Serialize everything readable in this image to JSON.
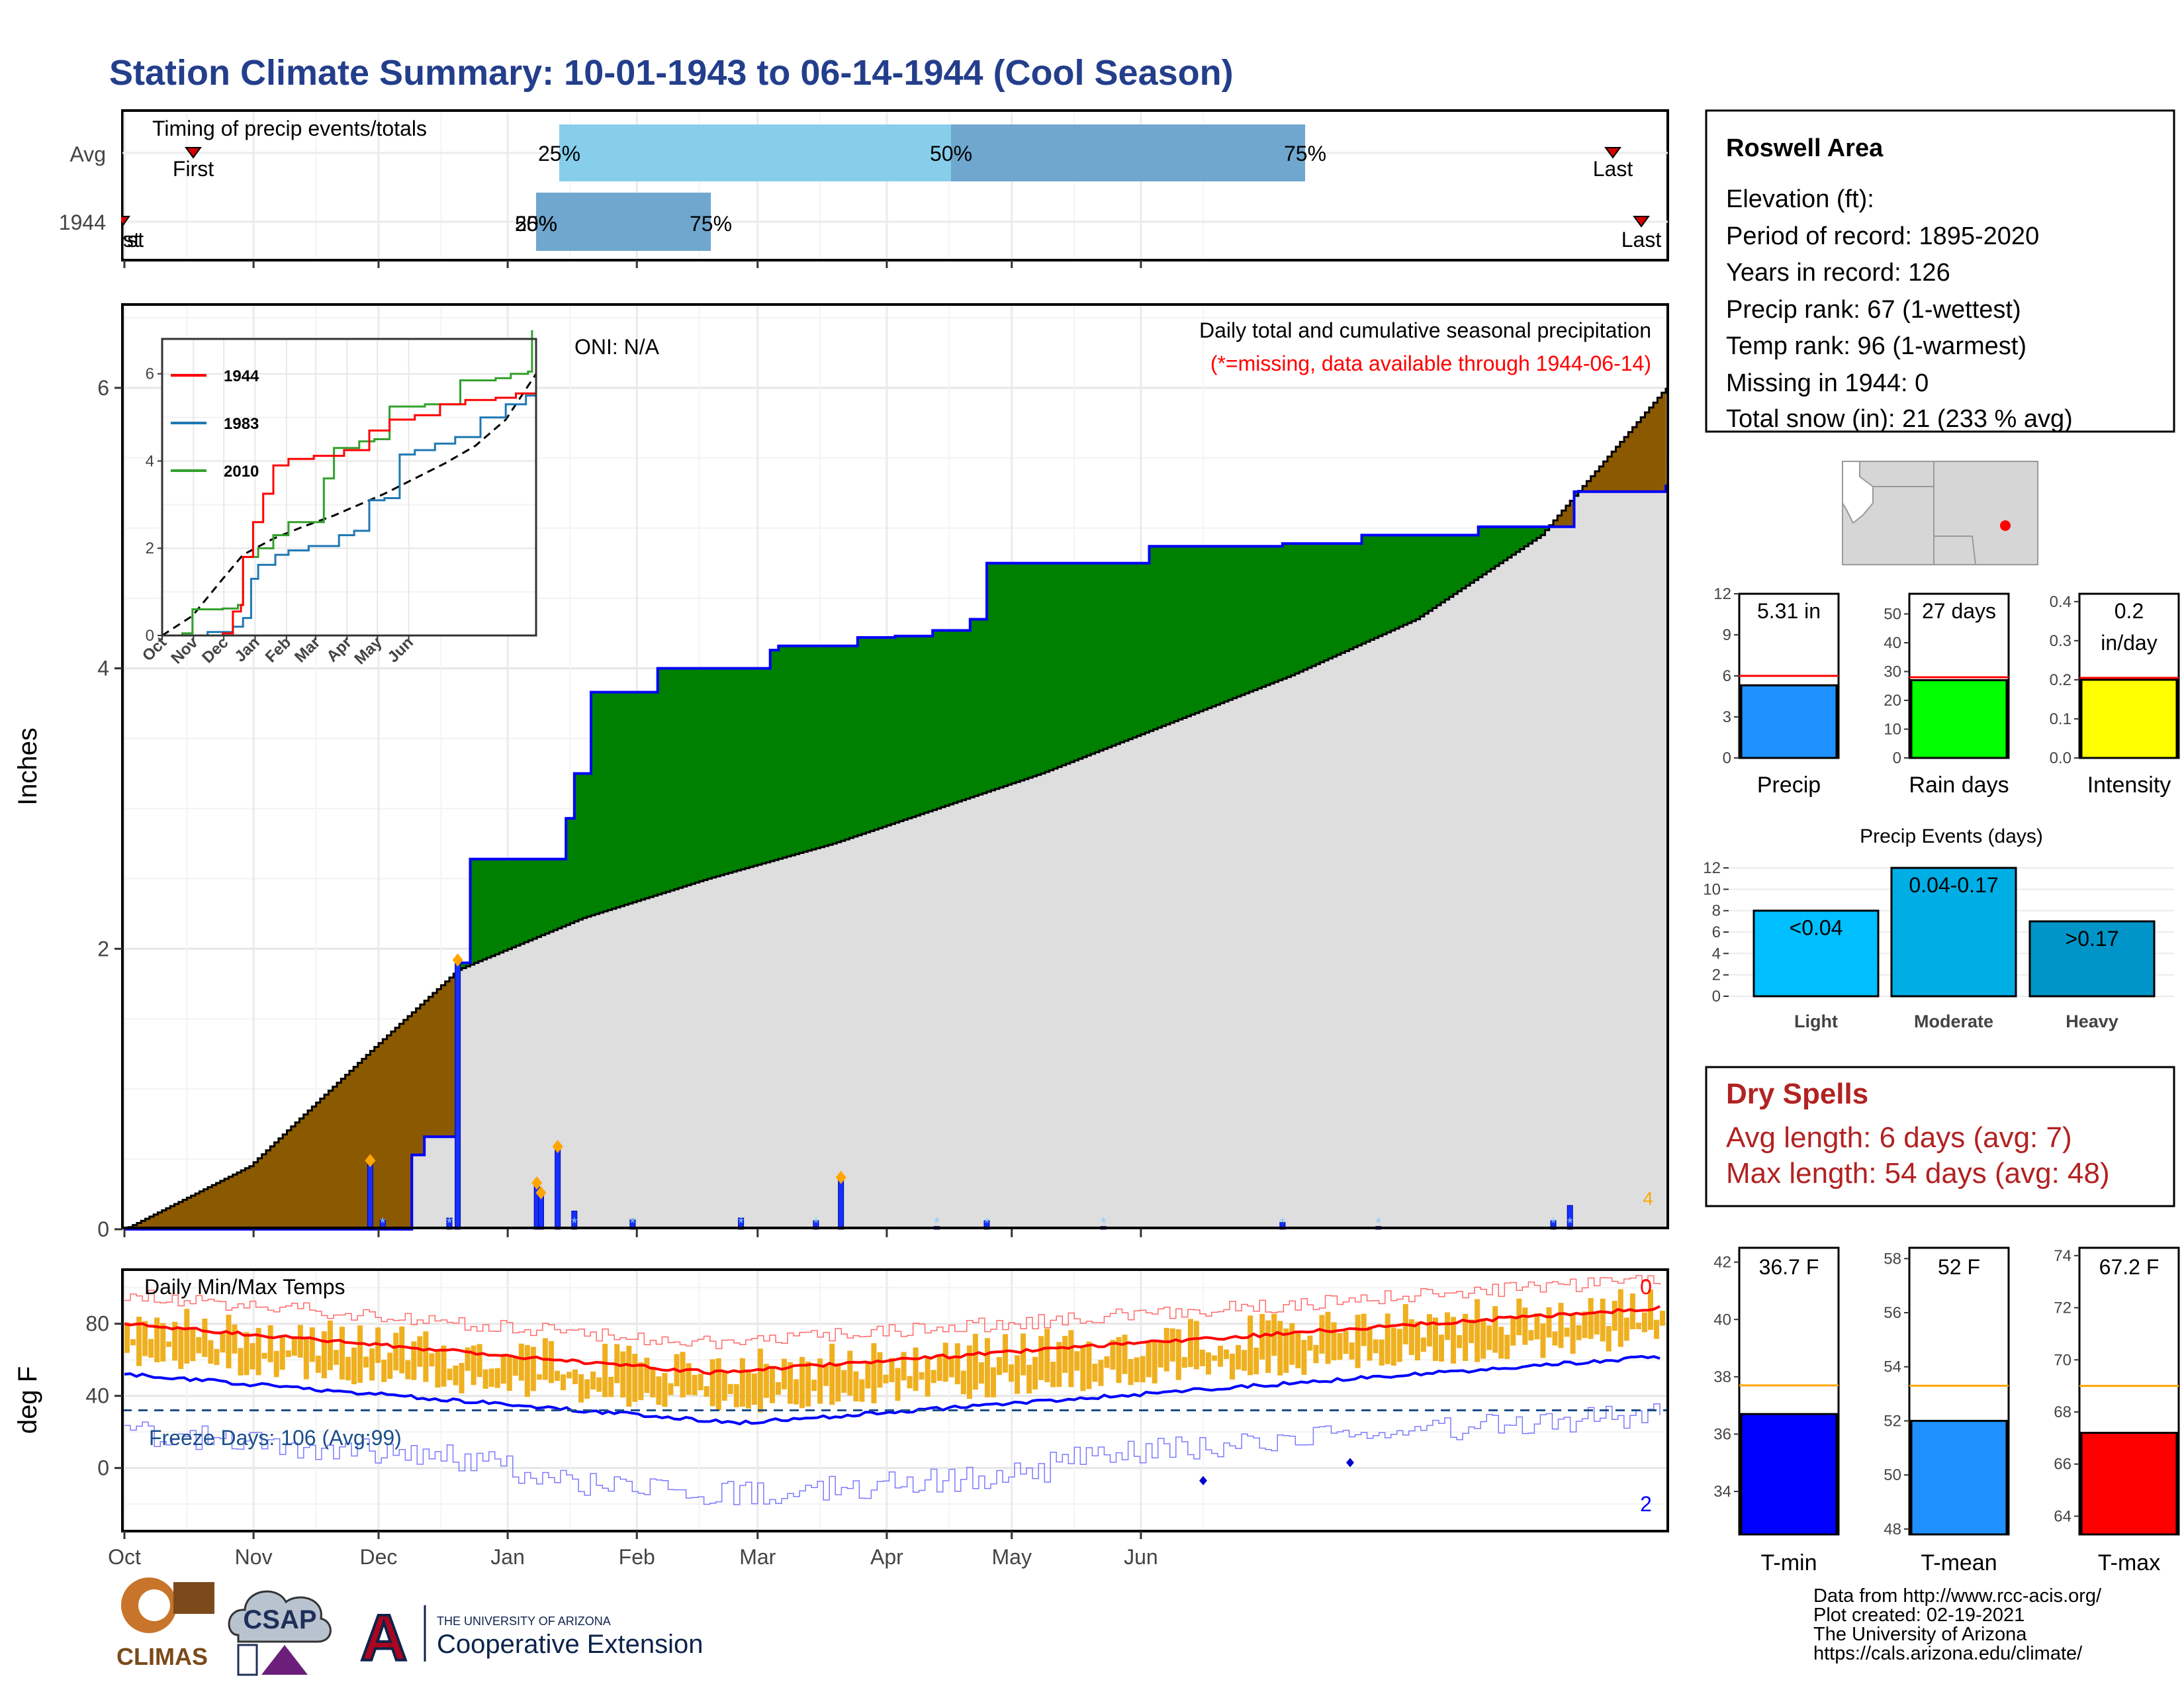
{
  "title": "Station Climate Summary: 10-01-1943 to 06-14-1944 (Cool Season)",
  "colors": {
    "title": "#1f3a8a",
    "brown": "#8B5A00",
    "green": "#008000",
    "gray_fill": "#dedede",
    "blue_line": "#0000ff",
    "light_blue": "#87ceeb",
    "mid_blue": "#6fa7cf",
    "red": "#ff0000",
    "orange": "#ffa500",
    "gold": "#f0b020",
    "dark_red": "#b22222"
  },
  "timing": {
    "label": "Timing of precip events/totals",
    "rows": [
      "Avg",
      "1944"
    ],
    "avg": {
      "first_label": "First",
      "last_label": "Last",
      "p25": "25%",
      "p50": "50%",
      "p75": "75%"
    },
    "y1944": {
      "first_label": "First",
      "last_label": "Last",
      "p25": "25%",
      "p50": "50%",
      "p75": "75%"
    }
  },
  "main": {
    "ylabel": "Inches",
    "oni": "ONI: N/A",
    "title1": "Daily total and cumulative seasonal precipitation",
    "title2": "(*=missing, data available through 1944-06-14)",
    "end_count": "4",
    "yticks": [
      "0",
      "2",
      "4",
      "6"
    ],
    "months": [
      "Oct",
      "Nov",
      "Dec",
      "Jan",
      "Feb",
      "Mar",
      "Apr",
      "May",
      "Jun"
    ]
  },
  "inset": {
    "legend": [
      "1944",
      "1983",
      "2010"
    ],
    "legend_colors": [
      "#ff0000",
      "#1f78b4",
      "#33a02c"
    ],
    "yticks": [
      "0",
      "2",
      "4",
      "6"
    ],
    "months": [
      "Oct",
      "Nov",
      "Dec",
      "Jan",
      "Feb",
      "Mar",
      "Apr",
      "May",
      "Jun"
    ]
  },
  "temps": {
    "label": "Daily Min/Max Temps",
    "ylabel": "deg F",
    "freeze": "Freeze Days: 106 (Avg:99)",
    "top_count": "0",
    "bottom_count": "2",
    "yticks": [
      "0",
      "40",
      "80"
    ],
    "months": [
      "Oct",
      "Nov",
      "Dec",
      "Jan",
      "Feb",
      "Mar",
      "Apr",
      "May",
      "Jun"
    ]
  },
  "info": {
    "name": "Roswell Area",
    "lines": [
      "Elevation (ft):",
      "Period of record: 1895-2020",
      "Years in record: 126",
      "Precip rank: 67 (1-wettest)",
      "Temp rank: 96 (1-warmest)",
      "Missing in 1944: 0",
      "Total snow (in): 21 (233 % avg)"
    ]
  },
  "mini_bars": [
    {
      "label": "Precip",
      "value_text": "5.31 in",
      "value": 5.31,
      "avg": 6.0,
      "max": 12,
      "yticks": [
        "0",
        "3",
        "6",
        "9",
        "12"
      ],
      "color": "#1e90ff"
    },
    {
      "label": "Rain days",
      "value_text": "27 days",
      "value": 27,
      "avg": 28,
      "max": 57,
      "yticks": [
        "0",
        "10",
        "20",
        "30",
        "40",
        "50"
      ],
      "color": "#00ff00"
    },
    {
      "label": "Intensity",
      "value_text1": "0.2",
      "value_text2": "in/day",
      "value": 0.2,
      "avg": 0.205,
      "max": 0.42,
      "yticks": [
        "0.0",
        "0.1",
        "0.2",
        "0.3",
        "0.4"
      ],
      "color": "#ffff00"
    }
  ],
  "events": {
    "title": "Precip Events (days)",
    "yticks": [
      "0",
      "2",
      "4",
      "6",
      "8",
      "10",
      "12"
    ],
    "bars": [
      {
        "label": "Light",
        "text": "<0.04",
        "value": 8,
        "color": "#00bfff"
      },
      {
        "label": "Moderate",
        "text": "0.04-0.17",
        "value": 12,
        "color": "#00aee6"
      },
      {
        "label": "Heavy",
        "text": ">0.17",
        "value": 7,
        "color": "#0095c8"
      }
    ]
  },
  "dry": {
    "title": "Dry Spells",
    "line1": "Avg length: 6 days (avg: 7)",
    "line2": "Max length: 54 days (avg: 48)"
  },
  "temp_bars": [
    {
      "label": "T-min",
      "value_text": "36.7 F",
      "value": 36.7,
      "avg": 37.7,
      "min": 32.5,
      "max": 42.5,
      "yticks": [
        "34",
        "36",
        "38",
        "40",
        "42"
      ],
      "color": "#0000ff"
    },
    {
      "label": "T-mean",
      "value_text": "52 F",
      "value": 52.0,
      "avg": 53.3,
      "min": 47.8,
      "max": 58.4,
      "yticks": [
        "48",
        "50",
        "52",
        "54",
        "56",
        "58"
      ],
      "color": "#1e90ff"
    },
    {
      "label": "T-max",
      "value_text": "67.2 F",
      "value": 67.2,
      "avg": 69.0,
      "min": 63.3,
      "max": 74.3,
      "yticks": [
        "64",
        "66",
        "68",
        "70",
        "72",
        "74"
      ],
      "color": "#ff0000"
    }
  ],
  "footer": {
    "lines": [
      "Data from http://www.rcc-acis.org/",
      "Plot created: 02-19-2021",
      "The University of Arizona",
      "https://cals.arizona.edu/climate/"
    ],
    "climas": "CLIMAS",
    "csap": "CSAP",
    "ua_small": "THE UNIVERSITY OF ARIZONA",
    "ua_big": "Cooperative Extension"
  },
  "chart_data": {
    "type": "area",
    "title": "Daily total and cumulative seasonal precipitation",
    "ylabel": "Inches",
    "ylim": [
      0,
      6.5
    ],
    "x_range": [
      "1943-10-01",
      "1944-06-14"
    ],
    "cumulative_1944": [
      [
        0,
        0
      ],
      [
        69,
        0.53
      ],
      [
        72,
        0.66
      ],
      [
        78,
        0.72
      ],
      [
        70,
        0.53
      ],
      [
        72,
        0.66
      ],
      [
        80,
        1.9
      ],
      [
        83,
        2.64
      ],
      [
        103,
        2.64
      ],
      [
        106,
        2.93
      ],
      [
        108,
        3.25
      ],
      [
        112,
        3.83
      ],
      [
        128,
        4.0
      ],
      [
        153,
        4.0
      ],
      [
        155,
        4.13
      ],
      [
        157,
        4.16
      ],
      [
        174,
        4.16
      ],
      [
        176,
        4.22
      ],
      [
        183,
        4.22
      ],
      [
        185,
        4.23
      ],
      [
        192,
        4.23
      ],
      [
        194,
        4.27
      ],
      [
        202,
        4.27
      ],
      [
        203,
        4.35
      ],
      [
        207,
        4.75
      ],
      [
        244,
        4.75
      ],
      [
        246,
        4.87
      ],
      [
        276,
        4.87
      ],
      [
        278,
        4.89
      ],
      [
        295,
        4.89
      ],
      [
        297,
        4.95
      ],
      [
        322,
        4.95
      ],
      [
        325,
        5.01
      ],
      [
        346,
        5.01
      ],
      [
        348,
        5.26
      ],
      [
        370,
        5.31
      ]
    ],
    "cumulative_avg": [
      [
        0,
        0
      ],
      [
        30,
        0.45
      ],
      [
        60,
        1.3
      ],
      [
        80,
        1.85
      ],
      [
        110,
        2.22
      ],
      [
        140,
        2.5
      ],
      [
        170,
        2.75
      ],
      [
        190,
        2.95
      ],
      [
        220,
        3.25
      ],
      [
        250,
        3.6
      ],
      [
        280,
        3.95
      ],
      [
        310,
        4.35
      ],
      [
        340,
        4.95
      ],
      [
        370,
        6.0
      ]
    ],
    "daily_events": [
      [
        59,
        0.49
      ],
      [
        62,
        0.07
      ],
      [
        78,
        0.08
      ],
      [
        80,
        1.92
      ],
      [
        99,
        0.33
      ],
      [
        100,
        0.26
      ],
      [
        104,
        0.59
      ],
      [
        108,
        0.13
      ],
      [
        122,
        0.07
      ],
      [
        148,
        0.08
      ],
      [
        166,
        0.06
      ],
      [
        172,
        0.37
      ],
      [
        195,
        0.02
      ],
      [
        207,
        0.06
      ],
      [
        235,
        0.02
      ],
      [
        278,
        0.05
      ],
      [
        301,
        0.02
      ],
      [
        343,
        0.06
      ],
      [
        347,
        0.17
      ]
    ]
  }
}
